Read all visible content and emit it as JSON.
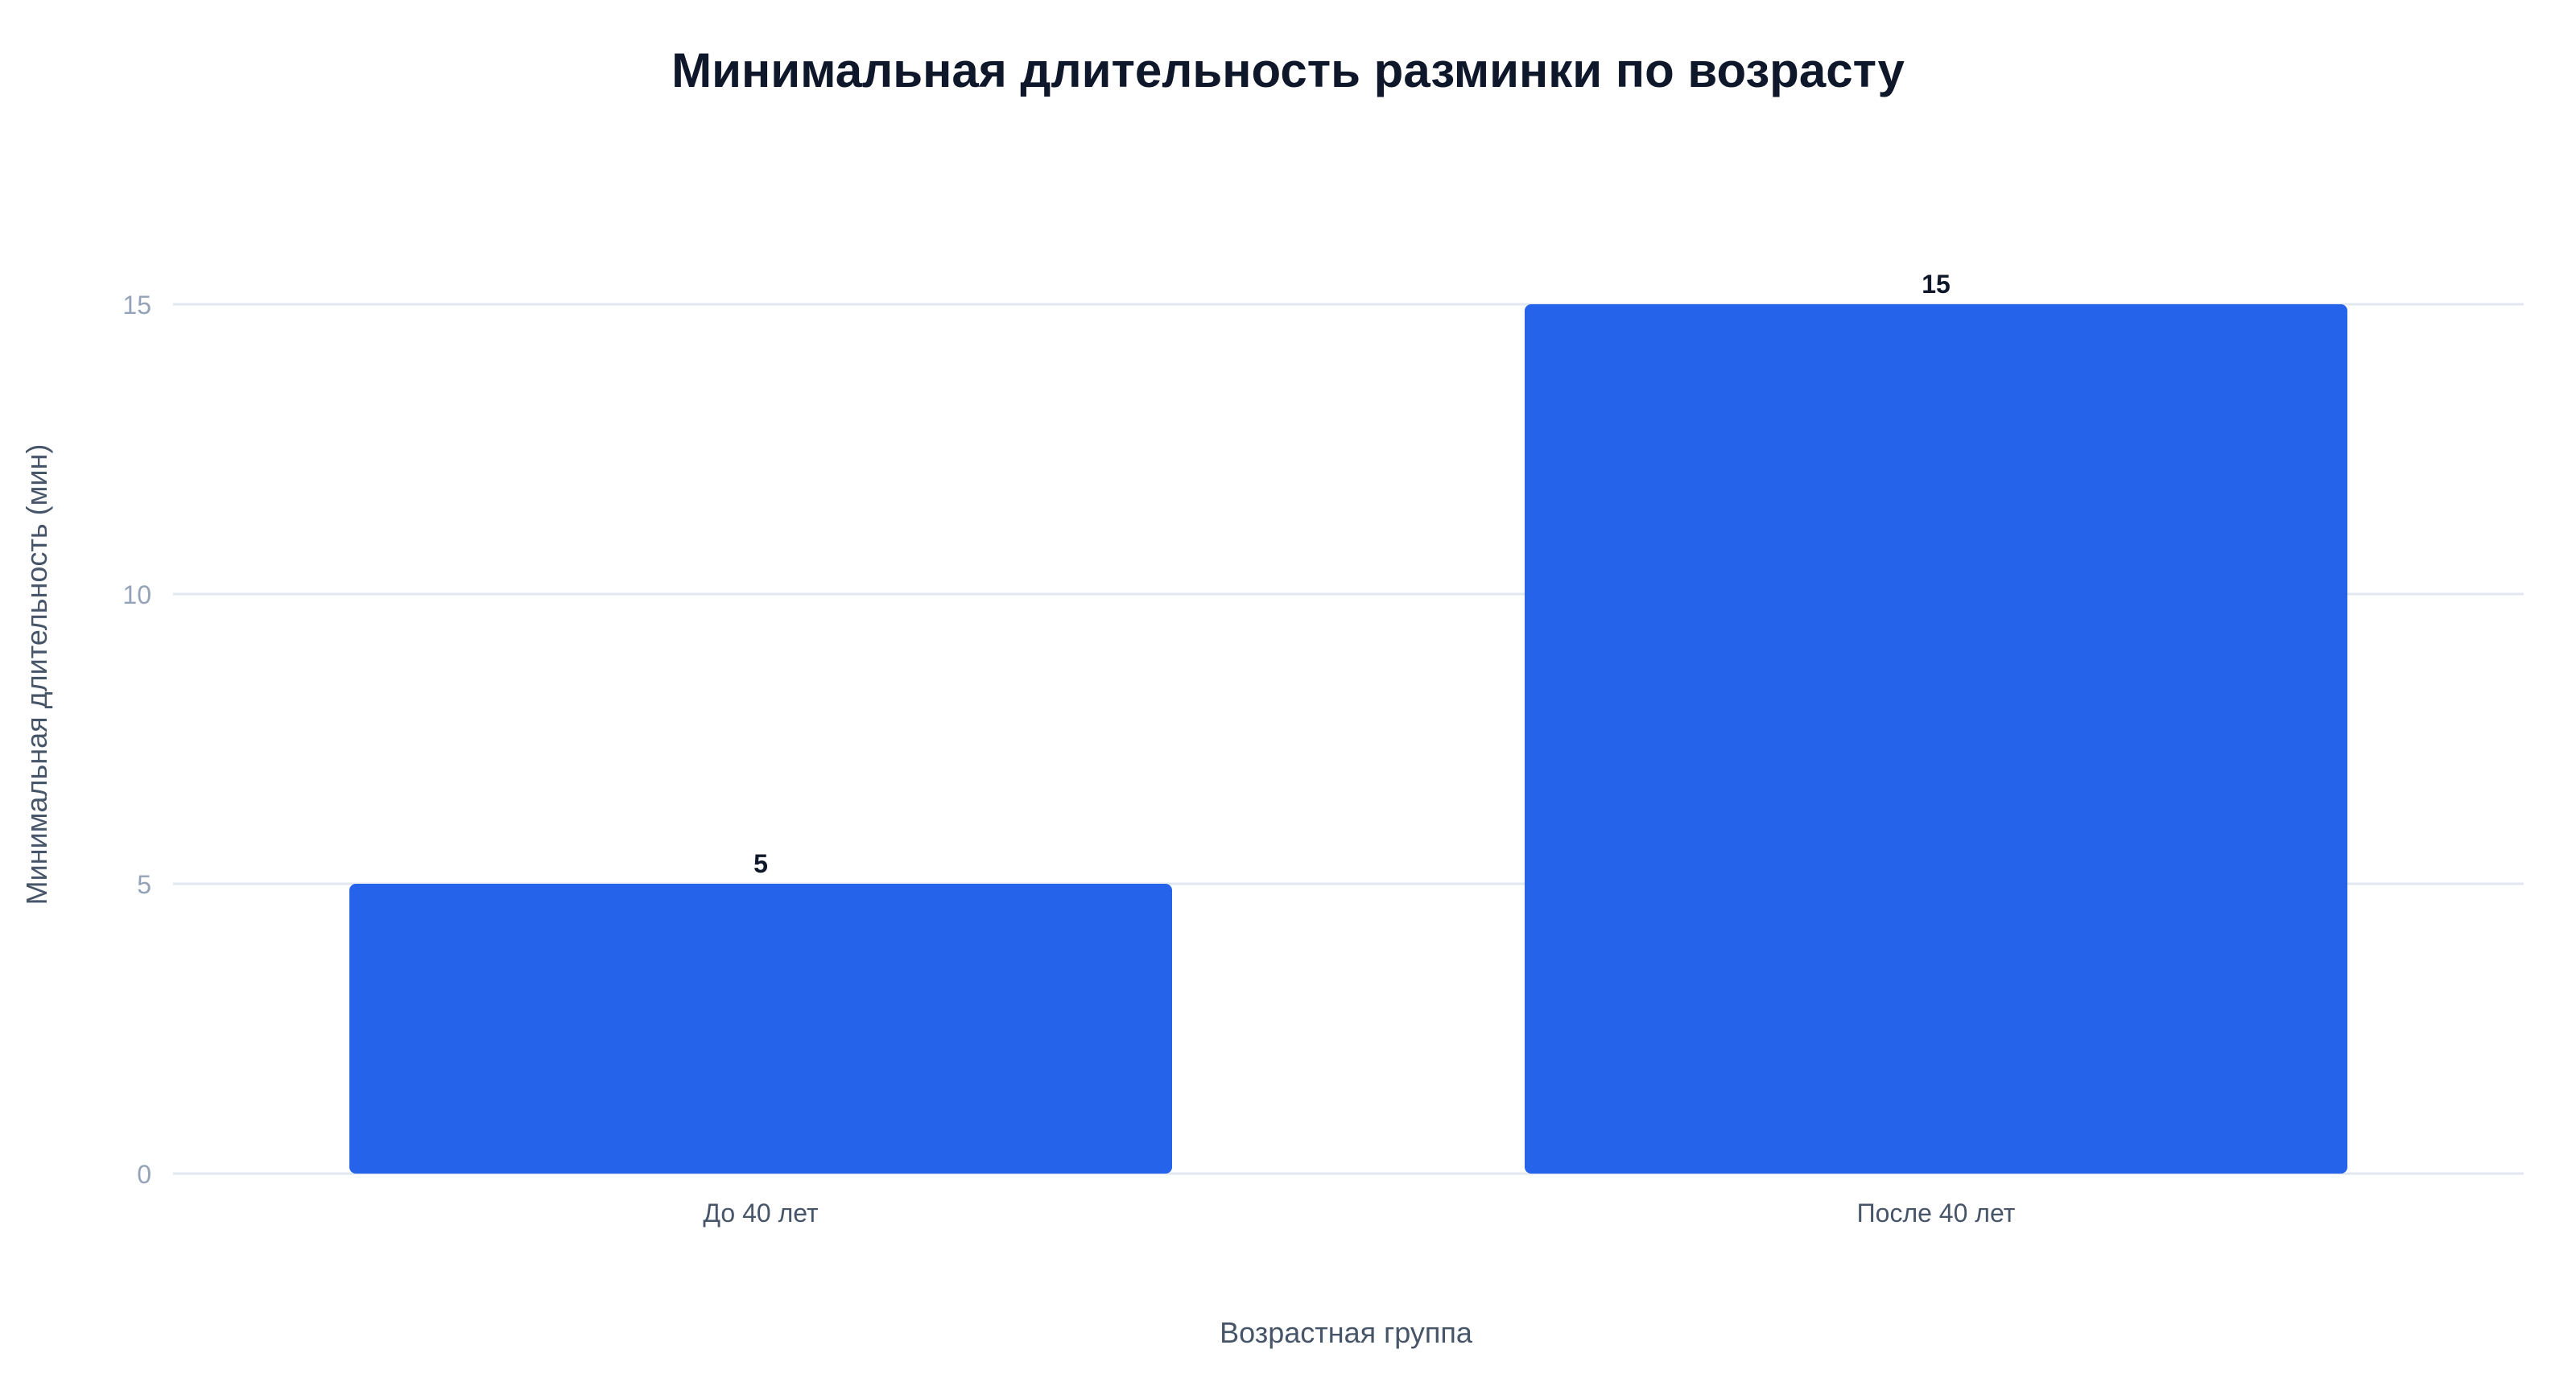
{
  "chart_data": {
    "type": "bar",
    "title": "Минимальная длительность разминки по возрасту",
    "xlabel": "Возрастная группа",
    "ylabel": "Минимальная длительность (мин)",
    "categories": [
      "До 40 лет",
      "После 40 лет"
    ],
    "values": [
      5,
      15
    ],
    "ylim": [
      0,
      15
    ],
    "yticks": [
      0,
      5,
      10,
      15
    ],
    "grid": true,
    "legend": "none",
    "colors": {
      "bar": "#2563EB",
      "title": "#0F172A",
      "value_label": "#0F172A",
      "axis_label": "#475569",
      "tick_label": "#94A3B8",
      "grid": "#E2E8F0"
    }
  }
}
